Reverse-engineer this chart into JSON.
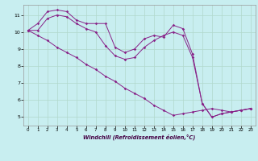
{
  "xlabel": "Windchill (Refroidissement éolien,°C)",
  "background_color": "#c8eef0",
  "grid_color": "#b0d8cc",
  "line_color": "#882288",
  "xlim": [
    -0.5,
    23.5
  ],
  "ylim": [
    4.5,
    11.6
  ],
  "xticks": [
    0,
    1,
    2,
    3,
    4,
    5,
    6,
    7,
    8,
    9,
    10,
    11,
    12,
    13,
    14,
    15,
    16,
    17,
    18,
    19,
    20,
    21,
    22,
    23
  ],
  "yticks": [
    5,
    6,
    7,
    8,
    9,
    10,
    11
  ],
  "line1_x": [
    0,
    1,
    2,
    3,
    4,
    5,
    6,
    7,
    8,
    9,
    10,
    11,
    12,
    13,
    14,
    15,
    16,
    17,
    18,
    19,
    20,
    21,
    22,
    23
  ],
  "line1_y": [
    10.1,
    10.5,
    11.2,
    11.3,
    11.2,
    10.7,
    10.5,
    10.5,
    10.5,
    9.1,
    8.8,
    9.0,
    9.6,
    9.8,
    9.7,
    10.4,
    10.2,
    8.7,
    5.8,
    5.0,
    5.2,
    5.3,
    5.4,
    5.5
  ],
  "line2_x": [
    0,
    1,
    2,
    3,
    4,
    5,
    6,
    7,
    8,
    9,
    10,
    11,
    12,
    13,
    14,
    15,
    16,
    17,
    18,
    19,
    20,
    21,
    22,
    23
  ],
  "line2_y": [
    10.1,
    10.1,
    10.8,
    11.0,
    10.9,
    10.5,
    10.2,
    10.0,
    9.2,
    8.6,
    8.4,
    8.5,
    9.1,
    9.5,
    9.8,
    10.0,
    9.8,
    8.5,
    5.8,
    5.0,
    5.2,
    5.3,
    5.4,
    5.5
  ],
  "line3_x": [
    0,
    1,
    2,
    3,
    4,
    5,
    6,
    7,
    8,
    9,
    10,
    11,
    12,
    13,
    14,
    15,
    16,
    17,
    18,
    19,
    20,
    21,
    22,
    23
  ],
  "line3_y": [
    10.1,
    9.8,
    9.5,
    9.1,
    8.8,
    8.5,
    8.1,
    7.8,
    7.4,
    7.1,
    6.7,
    6.4,
    6.1,
    5.7,
    5.4,
    5.1,
    5.2,
    5.3,
    5.4,
    5.5,
    5.4,
    5.3,
    5.4,
    5.5
  ]
}
